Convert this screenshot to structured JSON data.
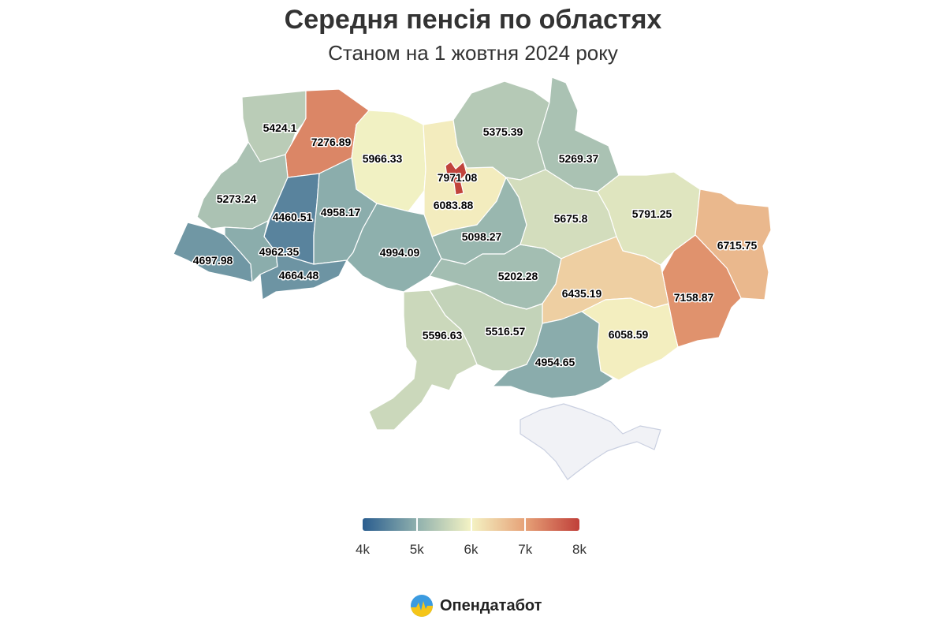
{
  "title": "Середня пенсія по областях",
  "subtitle": "Станом на 1 жовтня 2024 року",
  "colors": {
    "scale": [
      "#2a5d8f",
      "#8fb0ad",
      "#f4f3c4",
      "#e6a177",
      "#c0403a"
    ],
    "no_data": "#f1f2f6"
  },
  "legend": {
    "min": 4000,
    "max": 8000,
    "ticks": [
      {
        "value": 4000,
        "label": "4k"
      },
      {
        "value": 5000,
        "label": "5k"
      },
      {
        "value": 6000,
        "label": "6k"
      },
      {
        "value": 7000,
        "label": "7k"
      },
      {
        "value": 8000,
        "label": "8k"
      }
    ]
  },
  "regions": [
    {
      "id": "volyn",
      "value": 5424.1,
      "label": "5424.1"
    },
    {
      "id": "rivne",
      "value": 7276.89,
      "label": "7276.89"
    },
    {
      "id": "zhytomyr",
      "value": 5966.33,
      "label": "5966.33"
    },
    {
      "id": "kyiv-oblast",
      "value": 6083.88,
      "label": "6083.88"
    },
    {
      "id": "kyiv-city",
      "value": 7971.08,
      "label": "7971.08"
    },
    {
      "id": "chernihiv",
      "value": 5375.39,
      "label": "5375.39"
    },
    {
      "id": "sumy",
      "value": 5269.37,
      "label": "5269.37"
    },
    {
      "id": "lviv",
      "value": 5273.24,
      "label": "5273.24"
    },
    {
      "id": "ternopil",
      "value": 4460.51,
      "label": "4460.51"
    },
    {
      "id": "khmelnytskyi",
      "value": 4958.17,
      "label": "4958.17"
    },
    {
      "id": "zakarpattia",
      "value": 4697.98,
      "label": "4697.98"
    },
    {
      "id": "ivano-frankivsk",
      "value": 4962.35,
      "label": "4962.35"
    },
    {
      "id": "chernivtsi",
      "value": 4664.48,
      "label": "4664.48"
    },
    {
      "id": "vinnytsia",
      "value": 4994.09,
      "label": "4994.09"
    },
    {
      "id": "cherkasy",
      "value": 5098.27,
      "label": "5098.27"
    },
    {
      "id": "kirovohrad",
      "value": 5202.28,
      "label": "5202.28"
    },
    {
      "id": "poltava",
      "value": 5675.8,
      "label": "5675.8"
    },
    {
      "id": "kharkiv",
      "value": 5791.25,
      "label": "5791.25"
    },
    {
      "id": "luhansk",
      "value": 6715.75,
      "label": "6715.75"
    },
    {
      "id": "donetsk",
      "value": 7158.87,
      "label": "7158.87"
    },
    {
      "id": "dnipropetrovsk",
      "value": 6435.19,
      "label": "6435.19"
    },
    {
      "id": "zaporizhzhia",
      "value": 6058.59,
      "label": "6058.59"
    },
    {
      "id": "kherson",
      "value": 4954.65,
      "label": "4954.65"
    },
    {
      "id": "mykolaiv",
      "value": 5516.57,
      "label": "5516.57"
    },
    {
      "id": "odesa",
      "value": 5596.63,
      "label": "5596.63"
    },
    {
      "id": "crimea",
      "value": null,
      "label": ""
    }
  ],
  "brand": {
    "name": "Опендатабот",
    "logo_icon": "opendatabot-logo-icon"
  }
}
